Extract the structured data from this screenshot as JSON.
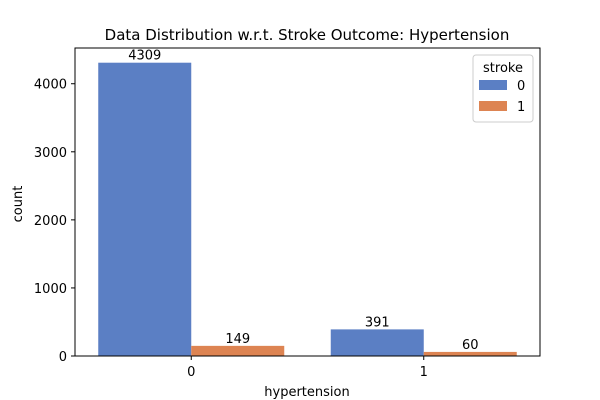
{
  "chart_data": {
    "type": "bar",
    "title": "Data Distribution w.r.t. Stroke Outcome: Hypertension",
    "xlabel": "hypertension",
    "ylabel": "count",
    "categories": [
      "0",
      "1"
    ],
    "series": [
      {
        "name": "0",
        "values": [
          4309,
          391
        ],
        "color": "#5b7fc4"
      },
      {
        "name": "1",
        "values": [
          149,
          60
        ],
        "color": "#dd8452"
      }
    ],
    "ylim": [
      0,
      4525
    ],
    "yticks": [
      0,
      1000,
      2000,
      3000,
      4000
    ],
    "legend": {
      "title": "stroke",
      "placement": "top-right"
    },
    "grid": false
  }
}
